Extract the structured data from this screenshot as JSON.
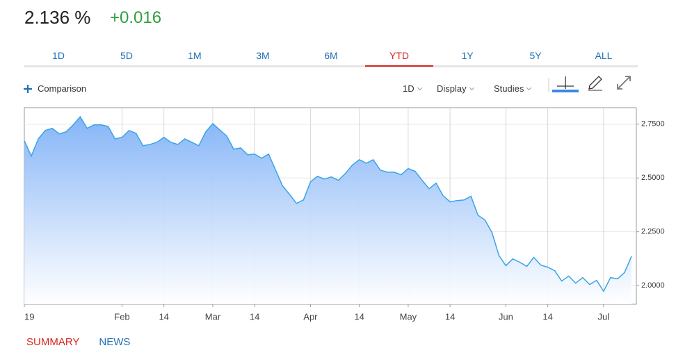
{
  "header": {
    "price": "2.136 %",
    "change": "+0.016"
  },
  "tabs": [
    "1D",
    "5D",
    "1M",
    "3M",
    "6M",
    "YTD",
    "1Y",
    "5Y",
    "ALL"
  ],
  "active_tab": 5,
  "toolbar": {
    "comparison": "Comparison",
    "interval": "1D",
    "display": "Display",
    "studies": "Studies"
  },
  "footer_tabs": [
    "SUMMARY",
    "NEWS"
  ],
  "chart_data": {
    "type": "area",
    "categories": [
      "19",
      null,
      null,
      null,
      null,
      null,
      null,
      null,
      null,
      null,
      null,
      null,
      null,
      null,
      "Feb",
      null,
      null,
      null,
      null,
      null,
      "14",
      null,
      null,
      null,
      null,
      null,
      null,
      "Mar",
      null,
      null,
      null,
      null,
      null,
      "14",
      null,
      null,
      null,
      null,
      null,
      null,
      null,
      "Apr",
      null,
      null,
      null,
      null,
      null,
      null,
      "14",
      null,
      null,
      null,
      null,
      null,
      null,
      "May",
      null,
      null,
      null,
      null,
      null,
      "14",
      null,
      null,
      null,
      null,
      null,
      null,
      null,
      "Jun",
      null,
      null,
      null,
      null,
      null,
      "14",
      null,
      null,
      null,
      null,
      null,
      null,
      null,
      "Jul",
      null,
      null,
      null,
      null
    ],
    "values": [
      2.673,
      2.602,
      2.682,
      2.721,
      2.731,
      2.705,
      2.715,
      2.747,
      2.785,
      2.731,
      2.747,
      2.747,
      2.74,
      2.682,
      2.689,
      2.721,
      2.708,
      2.65,
      2.656,
      2.666,
      2.689,
      2.666,
      2.656,
      2.682,
      2.666,
      2.65,
      2.715,
      2.753,
      2.724,
      2.695,
      2.634,
      2.64,
      2.608,
      2.611,
      2.592,
      2.611,
      2.537,
      2.463,
      2.424,
      2.382,
      2.398,
      2.482,
      2.508,
      2.495,
      2.505,
      2.489,
      2.521,
      2.56,
      2.585,
      2.569,
      2.585,
      2.537,
      2.527,
      2.527,
      2.515,
      2.544,
      2.531,
      2.489,
      2.45,
      2.476,
      2.418,
      2.389,
      2.395,
      2.398,
      2.415,
      2.327,
      2.305,
      2.247,
      2.14,
      2.092,
      2.124,
      2.108,
      2.089,
      2.131,
      2.095,
      2.085,
      2.069,
      2.021,
      2.044,
      2.011,
      2.037,
      2.005,
      2.024,
      1.973,
      2.037,
      2.031,
      2.06,
      2.136
    ],
    "color": "#3aa3e8",
    "fill_color": "#7fb1f7",
    "ylim": [
      1.913,
      2.827
    ],
    "yticks": [
      {
        "value": 2.0,
        "label": "2.0000"
      },
      {
        "value": 2.25,
        "label": "2.2500"
      },
      {
        "value": 2.5,
        "label": "2.5000"
      },
      {
        "value": 2.75,
        "label": "2.7500"
      }
    ],
    "grid": true
  }
}
